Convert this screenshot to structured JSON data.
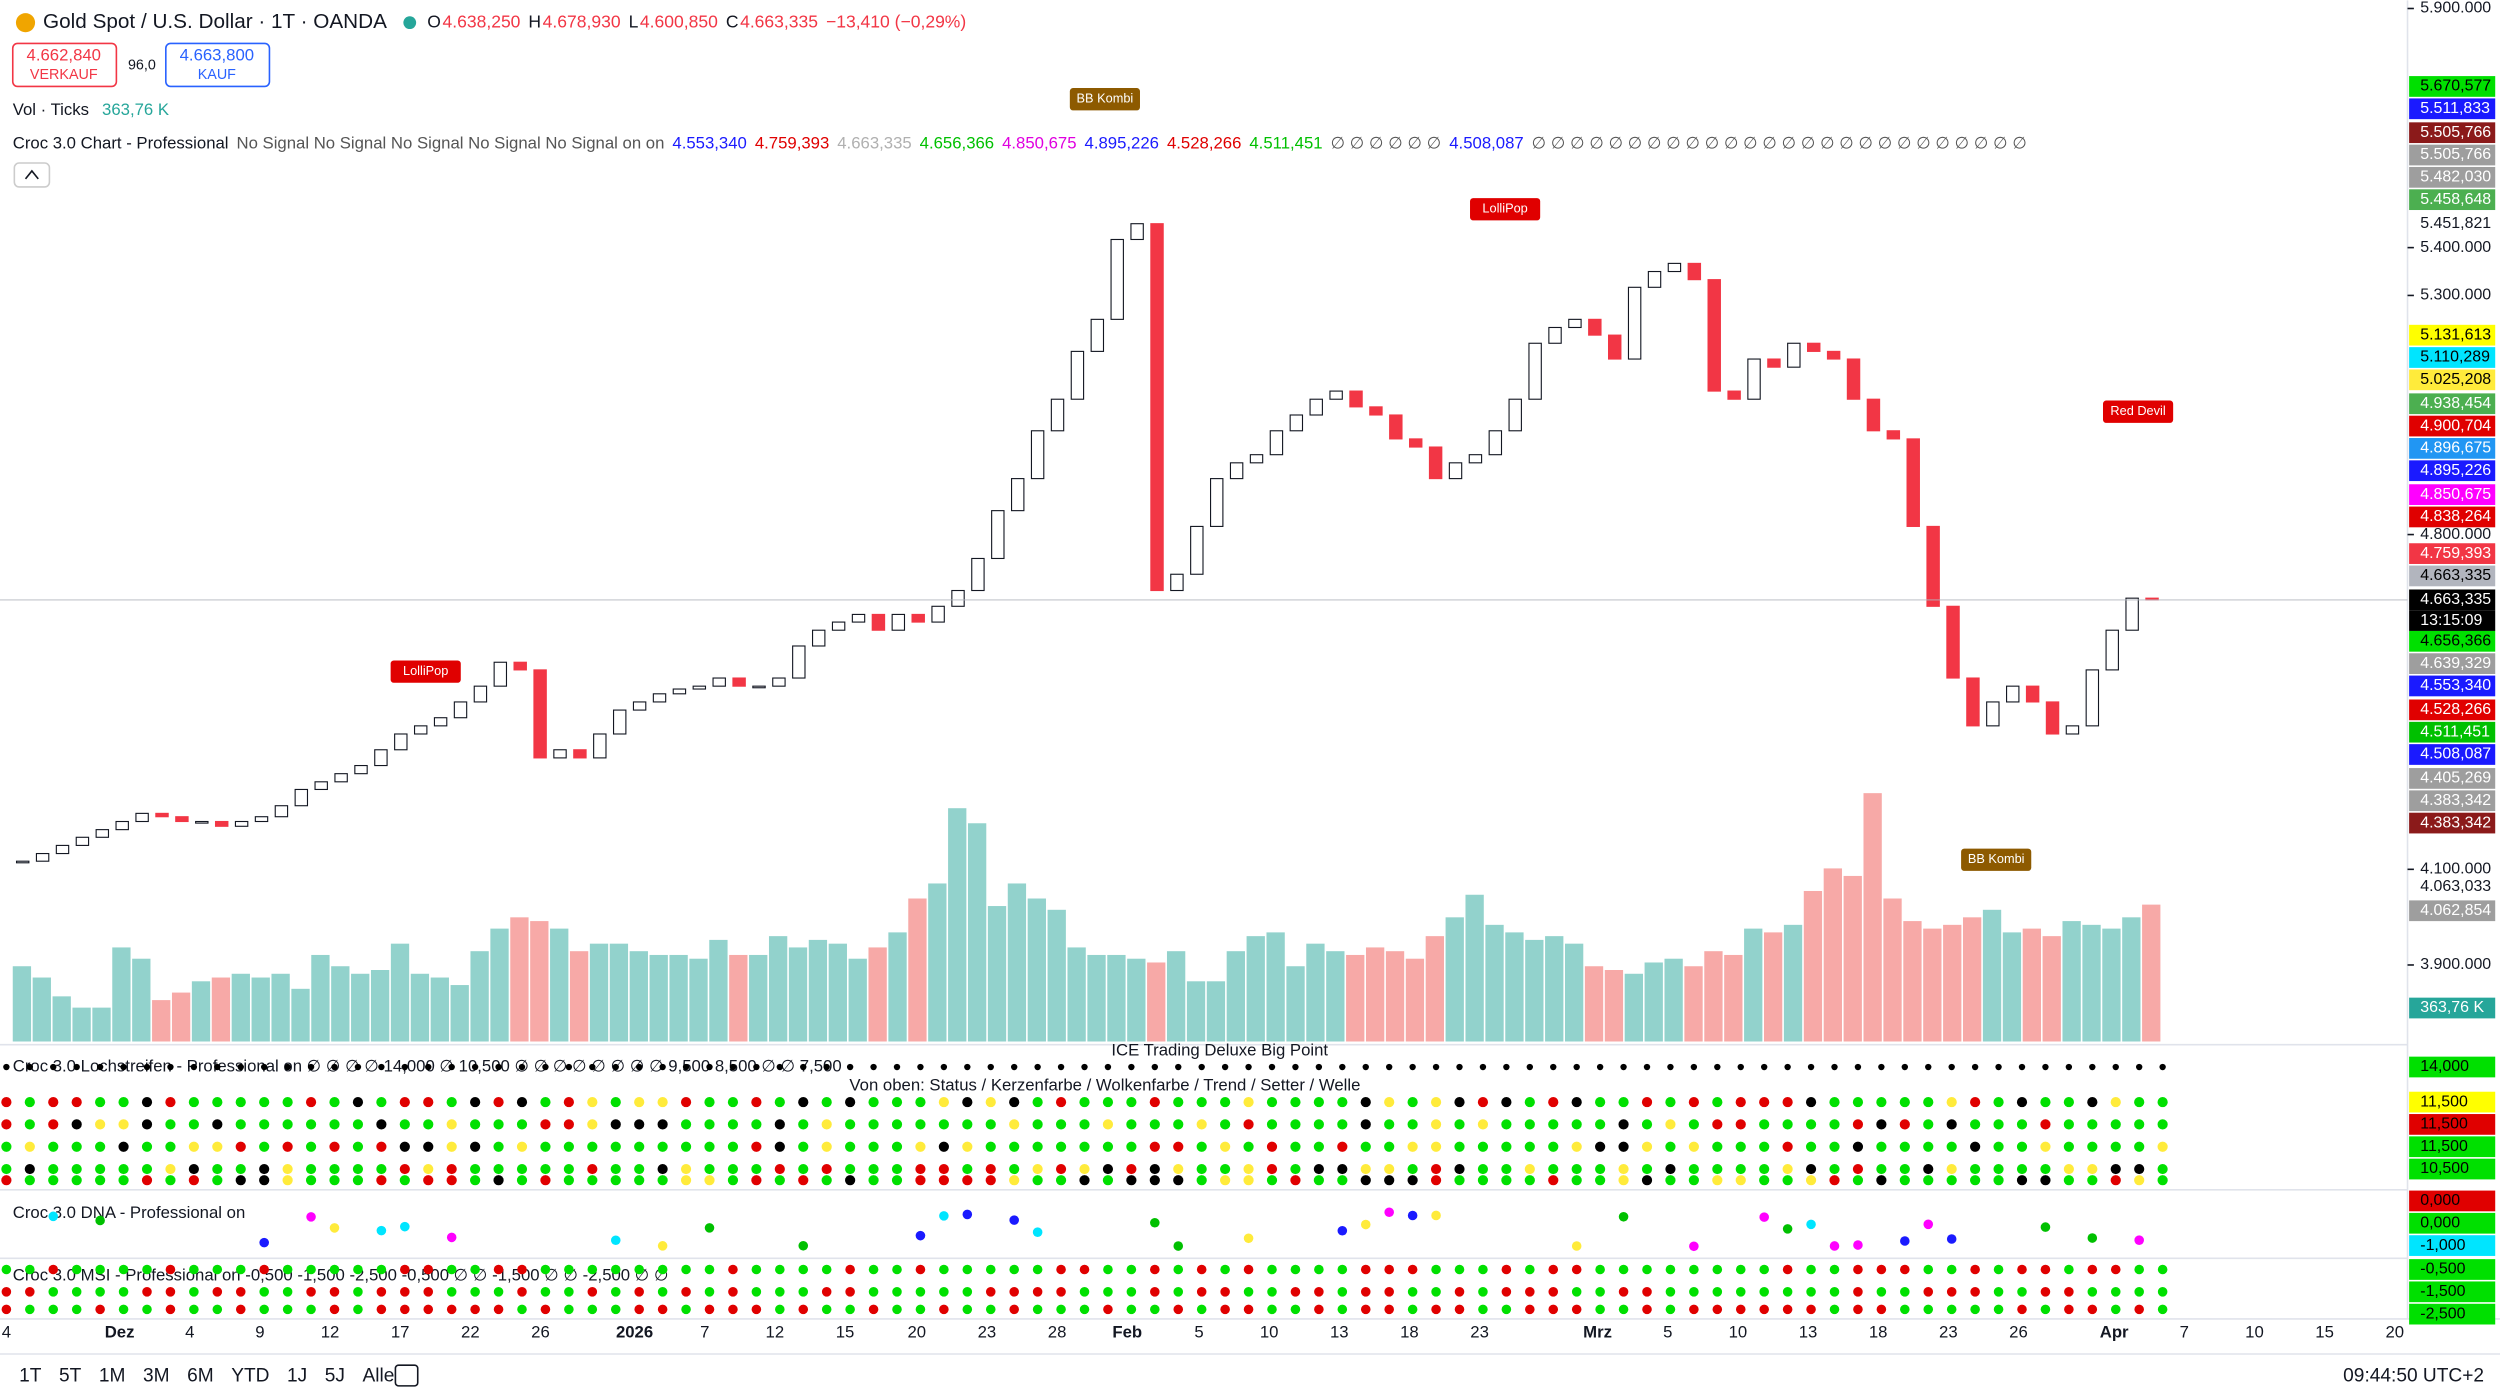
{
  "header": {
    "symbol": "Gold Spot / U.S. Dollar · 1T · OANDA",
    "ohlc": [
      {
        "key": "O",
        "value": "4.638,250"
      },
      {
        "key": "H",
        "value": "4.678,930"
      },
      {
        "key": "L",
        "value": "4.600,850"
      },
      {
        "key": "C",
        "value": "4.663,335"
      }
    ],
    "change": "−13,410 (−0,29%)"
  },
  "trade": {
    "sell_price": "4.662,840",
    "sell": "VERKAUF",
    "spread": "96,0",
    "buy_price": "4.663,800",
    "buy": "KAUF"
  },
  "volume_legend": {
    "name": "Vol · Ticks",
    "value": "363,76 K"
  },
  "indicator": [
    {
      "text": "Croc 3.0 Chart - Professional",
      "color": "#131722"
    },
    {
      "text": "No Signal No Signal No Signal No Signal No Signal on on",
      "color": "#555555"
    },
    {
      "text": "4.553,340",
      "color": "#1a1aff"
    },
    {
      "text": "4.759,393",
      "color": "#e00000"
    },
    {
      "text": "4.663,335",
      "color": "#b0b0b0"
    },
    {
      "text": "4.656,366",
      "color": "#00c000"
    },
    {
      "text": "4.850,675",
      "color": "#e000e0"
    },
    {
      "text": "4.895,226",
      "color": "#1a1aff"
    },
    {
      "text": "4.528,266",
      "color": "#e00000"
    },
    {
      "text": "4.511,451",
      "color": "#00c000"
    },
    {
      "text": "∅ ∅ ∅ ∅ ∅ ∅",
      "color": "#555555"
    },
    {
      "text": "4.508,087",
      "color": "#1a1aff"
    },
    {
      "text": "∅ ∅ ∅ ∅ ∅ ∅ ∅ ∅ ∅ ∅ ∅ ∅ ∅ ∅ ∅ ∅ ∅ ∅ ∅ ∅ ∅ ∅ ∅ ∅ ∅ ∅",
      "color": "#555555"
    }
  ],
  "chart_data": {
    "type": "candlestick",
    "closes": [
      4117,
      4133,
      4150,
      4167,
      4183,
      4200,
      4217,
      4210,
      4200,
      4200,
      4190,
      4200,
      4210,
      4233,
      4267,
      4283,
      4300,
      4317,
      4350,
      4383,
      4400,
      4417,
      4450,
      4483,
      4533,
      4517,
      4333,
      4350,
      4333,
      4383,
      4433,
      4450,
      4467,
      4477,
      4483,
      4500,
      4483,
      4483,
      4500,
      4567,
      4600,
      4617,
      4633,
      4600,
      4633,
      4617,
      4650,
      4683,
      4750,
      4850,
      4917,
      5017,
      5083,
      5183,
      5250,
      5417,
      5450,
      4683,
      4717,
      4817,
      4917,
      4950,
      4967,
      5017,
      5050,
      5083,
      5100,
      5067,
      5050,
      5000,
      4983,
      4917,
      4950,
      4967,
      5017,
      5083,
      5200,
      5233,
      5250,
      5217,
      5167,
      5317,
      5350,
      5367,
      5333,
      5100,
      5083,
      5167,
      5150,
      5200,
      5183,
      5167,
      5083,
      5017,
      5000,
      4817,
      4650,
      4500,
      4400,
      4450,
      4483,
      4450,
      4383,
      4400,
      4517,
      4600,
      4667,
      4663.335
    ],
    "volumes": [
      200,
      170,
      120,
      90,
      90,
      250,
      220,
      110,
      130,
      160,
      170,
      180,
      170,
      180,
      140,
      230,
      200,
      180,
      190,
      260,
      180,
      170,
      150,
      240,
      300,
      330,
      320,
      300,
      240,
      260,
      260,
      240,
      230,
      230,
      220,
      270,
      230,
      230,
      280,
      250,
      270,
      260,
      220,
      250,
      290,
      380,
      420,
      620,
      580,
      360,
      420,
      380,
      350,
      250,
      230,
      230,
      220,
      210,
      240,
      160,
      160,
      240,
      280,
      290,
      200,
      260,
      240,
      230,
      250,
      240,
      220,
      280,
      330,
      390,
      310,
      290,
      270,
      280,
      260,
      200,
      190,
      180,
      210,
      220,
      200,
      240,
      230,
      300,
      290,
      310,
      400,
      460,
      440,
      660,
      380,
      320,
      300,
      310,
      330,
      350,
      290,
      300,
      280,
      320,
      310,
      300,
      330,
      363.76
    ],
    "up_color": "#ffffff",
    "down_color": "#f23645",
    "vol_up_color": "#92d2cc",
    "vol_down_color": "#f7a9a7",
    "ylim": [
      3740,
      5917
    ],
    "yticks": [
      {
        "value": 5900,
        "label": "5.900.000"
      },
      {
        "value": 5400,
        "label": "5.400.000"
      },
      {
        "value": 5300,
        "label": "5.300.000"
      },
      {
        "value": 4800,
        "label": "4.800.000"
      },
      {
        "value": 4100,
        "label": "4.100.000"
      },
      {
        "value": 3900,
        "label": "3.900.000"
      }
    ]
  },
  "price_labels": [
    {
      "text": "5.670,577",
      "bg": "#00e000",
      "fg": "#000"
    },
    {
      "text": "5.511,833",
      "bg": "#1a1aff",
      "fg": "#fff"
    },
    {
      "text": "5.505,766",
      "bg": "#8b1a1a",
      "fg": "#fff"
    },
    {
      "text": "5.505,766",
      "bg": "#9e9e9e",
      "fg": "#fff"
    },
    {
      "text": "5.482,030",
      "bg": "#9e9e9e",
      "fg": "#fff"
    },
    {
      "text": "5.458,648",
      "bg": "#4caf50",
      "fg": "#fff"
    },
    {
      "text": "5.451,821",
      "bg": "none",
      "fg": "#131722"
    },
    {
      "text": "5.131,613",
      "bg": "#ffff00",
      "fg": "#000"
    },
    {
      "text": "5.110,289",
      "bg": "#00e5ff",
      "fg": "#000"
    },
    {
      "text": "5.025,208",
      "bg": "#ffeb3b",
      "fg": "#000"
    },
    {
      "text": "4.938,454",
      "bg": "#4caf50",
      "fg": "#fff"
    },
    {
      "text": "4.900,704",
      "bg": "#e00000",
      "fg": "#fff"
    },
    {
      "text": "4.896,675",
      "bg": "#2196f3",
      "fg": "#fff"
    },
    {
      "text": "4.895,226",
      "bg": "#1a1aff",
      "fg": "#fff"
    },
    {
      "text": "4.850,675",
      "bg": "#ff00ff",
      "fg": "#fff"
    },
    {
      "text": "4.838,264",
      "bg": "#e00000",
      "fg": "#fff"
    },
    {
      "text": "4.759,393",
      "bg": "#f23645",
      "fg": "#fff"
    },
    {
      "text": "4.663,335",
      "bg": "#b2b5be",
      "fg": "#000"
    },
    {
      "text": "4.663,335",
      "bg": "#000000",
      "fg": "#fff"
    },
    {
      "text": "13:15:09",
      "bg": "#000000",
      "fg": "#fff"
    },
    {
      "text": "4.656,366",
      "bg": "#00e000",
      "fg": "#000"
    },
    {
      "text": "4.639,329",
      "bg": "#9e9e9e",
      "fg": "#fff"
    },
    {
      "text": "4.553,340",
      "bg": "#1a1aff",
      "fg": "#fff"
    },
    {
      "text": "4.528,266",
      "bg": "#e00000",
      "fg": "#fff"
    },
    {
      "text": "4.511,451",
      "bg": "#00c000",
      "fg": "#fff"
    },
    {
      "text": "4.508,087",
      "bg": "#1a1aff",
      "fg": "#fff"
    },
    {
      "text": "4.405,269",
      "bg": "#9e9e9e",
      "fg": "#fff"
    },
    {
      "text": "4.383,342",
      "bg": "#9e9e9e",
      "fg": "#fff"
    },
    {
      "text": "4.383,342",
      "bg": "#8b1a1a",
      "fg": "#fff"
    },
    {
      "text": "4.063,033",
      "bg": "none",
      "fg": "#131722"
    },
    {
      "text": "4.062,854",
      "bg": "#9e9e9e",
      "fg": "#fff"
    },
    {
      "text": "363,76 K",
      "bg": "#26a69a",
      "fg": "#fff"
    }
  ],
  "pane_labels": [
    {
      "text": "14,000",
      "bg": "#00e000"
    },
    {
      "text": "11,500",
      "bg": "#ffff00"
    },
    {
      "text": "11,500",
      "bg": "#e00000"
    },
    {
      "text": "11,500",
      "bg": "#00e000"
    },
    {
      "text": "10,500",
      "bg": "#00e000"
    },
    {
      "text": "0,000",
      "bg": "#e00000"
    },
    {
      "text": "0,000",
      "bg": "#00e000"
    },
    {
      "text": "-1,000",
      "bg": "#00e5ff"
    },
    {
      "text": "-0,500",
      "bg": "#00e000"
    },
    {
      "text": "-1,500",
      "bg": "#00e000"
    },
    {
      "text": "-2,500",
      "bg": "#00e000"
    }
  ],
  "annotations": [
    {
      "text": "BB Kombi",
      "bg": "#8d5a00"
    },
    {
      "text": "LolliPop",
      "bg": "#e00000"
    },
    {
      "text": "LolliPop",
      "bg": "#e00000"
    },
    {
      "text": "Red Devil",
      "bg": "#e00000"
    },
    {
      "text": "BB Kombi",
      "bg": "#8d5a00"
    }
  ],
  "panes": {
    "lochstreifen": "Croc 3.0 Lochstreifen - Professional on  ∅ ∅ ∅ ∅ 14,000 ∅ 10,500 ∅ ∅ ∅ ∅ ∅ ∅ ∅ ∅ 9,500 8,500 ∅ ∅ 7,500",
    "big_point": "ICE Trading Deluxe Big Point",
    "legend": "Von oben: Status / Kerzenfarbe / Wolkenfarbe / Trend / Setter / Welle",
    "dna": "Croc 3.0 DNA - Professional on",
    "msi": "Croc 3.0 MSI - Professional on -0,500 -1,500 -2,500 -0,500 ∅ ∅ -1,500 ∅ ∅ -2,500 ∅ ∅"
  },
  "time_labels": [
    "4",
    "Dez",
    "4",
    "9",
    "12",
    "17",
    "22",
    "26",
    "2026",
    "7",
    "12",
    "15",
    "20",
    "23",
    "28",
    "Feb",
    "5",
    "10",
    "13",
    "18",
    "23",
    "Mrz",
    "5",
    "10",
    "13",
    "18",
    "23",
    "26",
    "Apr",
    "7",
    "10",
    "15",
    "20"
  ],
  "toolbar": [
    "1T",
    "5T",
    "1M",
    "3M",
    "6M",
    "YTD",
    "1J",
    "5J",
    "Alle"
  ],
  "clock": "09:44:50 UTC+2"
}
